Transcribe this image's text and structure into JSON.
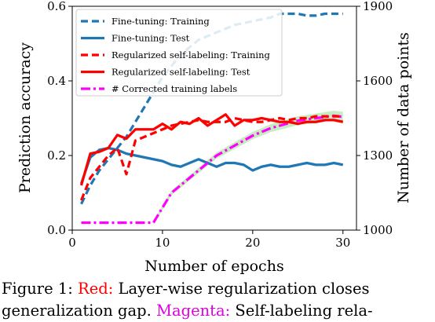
{
  "chart_data": {
    "type": "line",
    "xlabel": "Number of epochs",
    "ylabel_left": "Prediction accuracy",
    "ylabel_right": "Number of data points",
    "xlim": [
      0,
      31.5
    ],
    "ylim_left": [
      0.0,
      0.6
    ],
    "ylim_right": [
      1000,
      1900
    ],
    "x_ticks": [
      0,
      10,
      20,
      30
    ],
    "y_ticks_left": [
      0.0,
      0.2,
      0.4,
      0.6
    ],
    "y_ticks_right": [
      1000,
      1300,
      1600,
      1900
    ],
    "legend_placement": "top-left",
    "x": [
      1,
      2,
      3,
      4,
      5,
      6,
      7,
      8,
      9,
      10,
      11,
      12,
      13,
      14,
      15,
      16,
      17,
      18,
      19,
      20,
      21,
      22,
      23,
      24,
      25,
      26,
      27,
      28,
      29,
      30
    ],
    "series": [
      {
        "name": "Fine-tuning: Training",
        "axis": "left",
        "style": "dashed",
        "color": "#1f77b4",
        "values": [
          0.07,
          0.12,
          0.16,
          0.19,
          0.22,
          0.25,
          0.29,
          0.33,
          0.37,
          0.41,
          0.44,
          0.47,
          0.49,
          0.51,
          0.52,
          0.53,
          0.54,
          0.55,
          0.555,
          0.56,
          0.565,
          0.57,
          0.58,
          0.58,
          0.58,
          0.575,
          0.575,
          0.58,
          0.58,
          0.58
        ]
      },
      {
        "name": "Fine-tuning: Test",
        "axis": "left",
        "style": "solid",
        "color": "#1f77b4",
        "values": [
          0.125,
          0.195,
          0.215,
          0.22,
          0.215,
          0.205,
          0.2,
          0.195,
          0.19,
          0.185,
          0.175,
          0.17,
          0.18,
          0.19,
          0.18,
          0.17,
          0.18,
          0.18,
          0.175,
          0.16,
          0.17,
          0.175,
          0.17,
          0.17,
          0.175,
          0.18,
          0.175,
          0.175,
          0.18,
          0.175
        ]
      },
      {
        "name": "Regularized self-labeling: Training",
        "axis": "left",
        "style": "dashed",
        "color": "#ff0000",
        "values": [
          0.08,
          0.14,
          0.17,
          0.2,
          0.22,
          0.15,
          0.24,
          0.25,
          0.26,
          0.27,
          0.28,
          0.285,
          0.29,
          0.295,
          0.29,
          0.29,
          0.29,
          0.3,
          0.295,
          0.29,
          0.29,
          0.295,
          0.3,
          0.295,
          0.3,
          0.3,
          0.305,
          0.305,
          0.305,
          0.305
        ]
      },
      {
        "name": "Regularized self-labeling: Test",
        "axis": "left",
        "style": "solid",
        "color": "#ff0000",
        "values": [
          0.12,
          0.205,
          0.21,
          0.22,
          0.255,
          0.245,
          0.27,
          0.27,
          0.27,
          0.285,
          0.27,
          0.29,
          0.285,
          0.3,
          0.28,
          0.295,
          0.31,
          0.28,
          0.295,
          0.295,
          0.3,
          0.295,
          0.29,
          0.29,
          0.285,
          0.29,
          0.29,
          0.295,
          0.295,
          0.29
        ]
      },
      {
        "name": "# Corrected training labels",
        "axis": "right",
        "style": "dashdot",
        "color": "#ff00ff",
        "band_color": "#98df8a",
        "values": [
          1030,
          1030,
          1030,
          1030,
          1030,
          1030,
          1030,
          1030,
          1030,
          1090,
          1150,
          1180,
          1210,
          1240,
          1270,
          1300,
          1320,
          1340,
          1360,
          1380,
          1395,
          1410,
          1420,
          1430,
          1440,
          1445,
          1450,
          1455,
          1460,
          1455
        ]
      }
    ]
  },
  "caption": {
    "line1_prefix": "Figure 1: ",
    "line1_red": "Red:",
    "line1_rest": " Layer-wise regularization closes",
    "line2_start": "generalization gap. ",
    "line2_magenta": "Magenta:",
    "line2_rest": " Self-labeling rela-"
  }
}
